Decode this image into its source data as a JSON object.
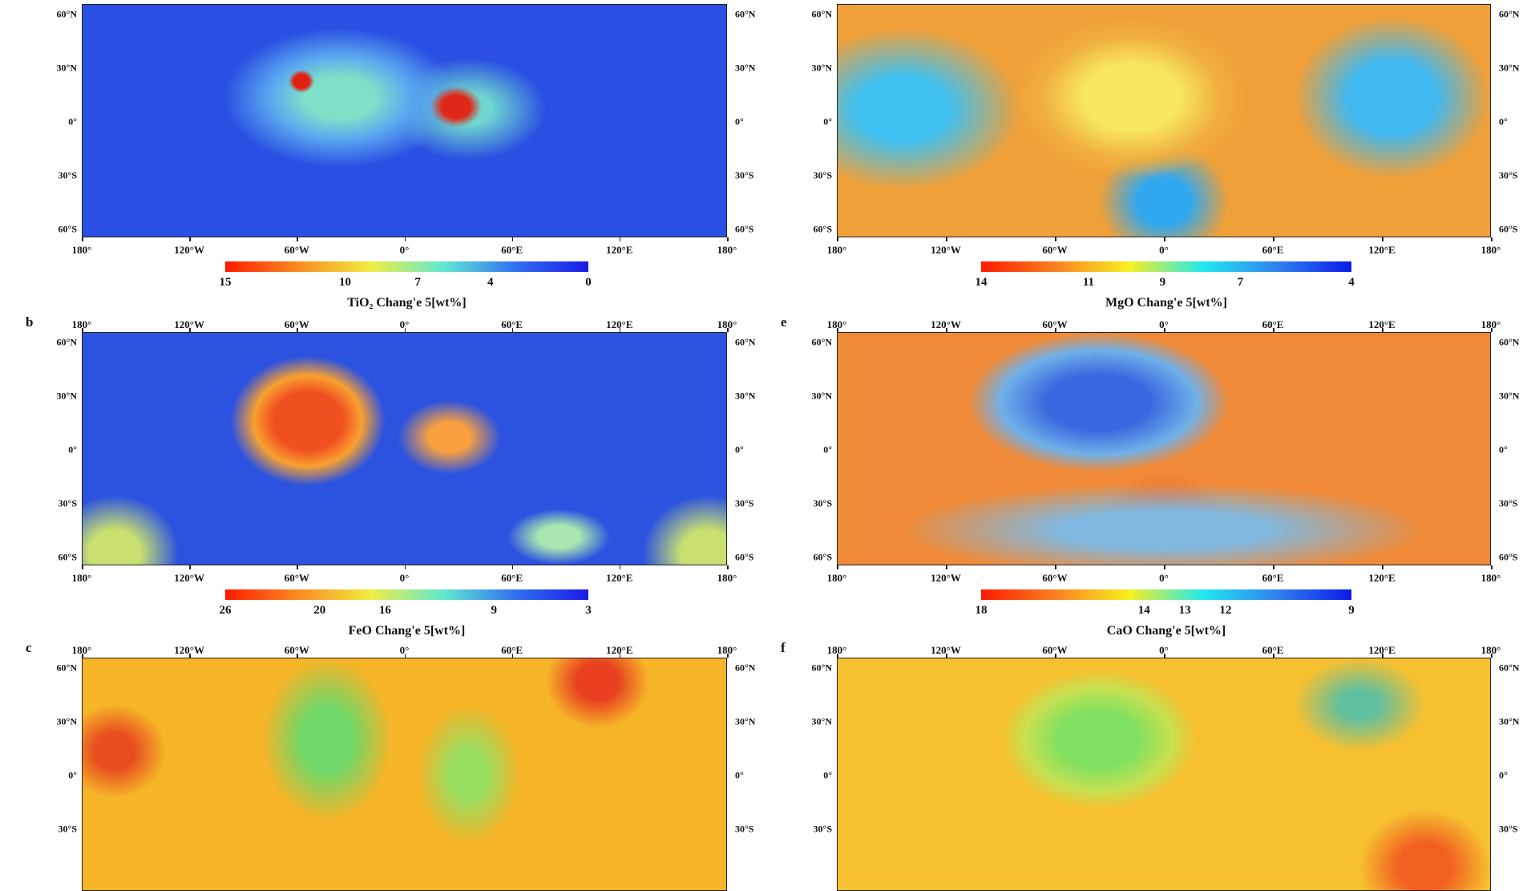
{
  "longitude_labels": [
    "180°",
    "120°W",
    "60°W",
    "0°",
    "60°E",
    "120°E",
    "180°"
  ],
  "latitude_labels": [
    "60°N",
    "30°N",
    "0°",
    "30°S",
    "60°S"
  ],
  "panels": [
    {
      "id": "a",
      "letter": "",
      "map_class": "m-tio2",
      "show_top_labels": false,
      "show_bottom_labels": true,
      "colorbar": {
        "title": "TiO₂  Chang'e 5[wt%]",
        "ticks": [
          "15",
          "10",
          "7",
          "4",
          "0"
        ],
        "colors": [
          "#ff1a00",
          "#fa8a20",
          "#f0ee40",
          "#60e8d0",
          "#3070f0",
          "#1a1ae8"
        ]
      }
    },
    {
      "id": "b",
      "letter": "b",
      "map_class": "m-feo",
      "show_top_labels": true,
      "show_bottom_labels": true,
      "colorbar": {
        "title": "FeO  Chang'e 5[wt%]",
        "ticks": [
          "26",
          "20",
          "16",
          "9",
          "3"
        ],
        "colors": [
          "#ff1a00",
          "#fa8a20",
          "#f0ee40",
          "#60e8d0",
          "#3070f0",
          "#1a1ae8"
        ]
      }
    },
    {
      "id": "c",
      "letter": "c",
      "map_class": "m-c",
      "show_top_labels": true,
      "show_bottom_labels": false,
      "colorbar": null
    },
    {
      "id": "d",
      "letter": "",
      "map_class": "m-mgo",
      "show_top_labels": false,
      "show_bottom_labels": true,
      "colorbar": {
        "title": "MgO  Chang'e 5[wt%]",
        "ticks": [
          "14",
          "11",
          "9",
          "7",
          "4"
        ],
        "colors": [
          "#ff1a00",
          "#fa8020",
          "#f8f020",
          "#20e8f0",
          "#3080f0",
          "#0a1ae8"
        ]
      }
    },
    {
      "id": "e",
      "letter": "e",
      "map_class": "m-cao",
      "show_top_labels": true,
      "show_bottom_labels": true,
      "colorbar": {
        "title": "CaO  Chang'e 5[wt%]",
        "ticks": [
          "18",
          "14",
          "13",
          "12",
          "9"
        ],
        "colors": [
          "#ff1a00",
          "#fa8020",
          "#f8f020",
          "#20e8f0",
          "#3080f0",
          "#0a1ae8"
        ]
      }
    },
    {
      "id": "f",
      "letter": "f",
      "map_class": "m-f",
      "show_top_labels": true,
      "show_bottom_labels": false,
      "colorbar": null
    }
  ]
}
